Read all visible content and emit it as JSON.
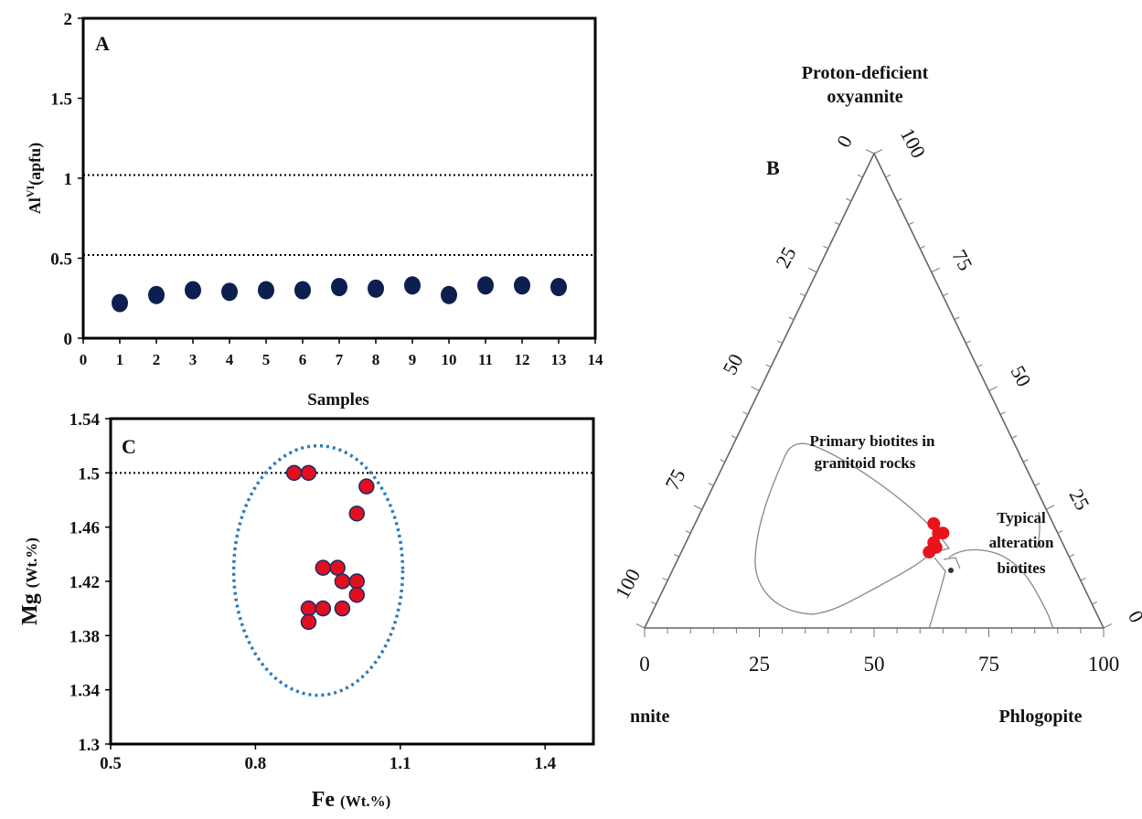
{
  "colors": {
    "panel_a_marker": "#0d1f4f",
    "panel_c_marker_fill": "#e01020",
    "panel_c_marker_stroke": "#1d2a66",
    "ellipse": "#2b7bbd",
    "ternary_points": "#e8141c",
    "axis": "#000000"
  },
  "chart_data": [
    {
      "id": "A",
      "type": "scatter",
      "panel_label": "A",
      "xlabel": "Samples",
      "ylabel_main": "Al",
      "ylabel_sup": "VI",
      "ylabel_rest": "(apfu)",
      "xlim": [
        0,
        14
      ],
      "ylim": [
        0,
        2
      ],
      "x_ticks": [
        "0",
        "1",
        "2",
        "3",
        "4",
        "5",
        "6",
        "7",
        "8",
        "9",
        "10",
        "11",
        "12",
        "13",
        "14"
      ],
      "y_ticks": [
        "0",
        "0.5",
        "1",
        "1.5",
        "2"
      ],
      "reference_lines_y": [
        0.52,
        1.02
      ],
      "points": [
        {
          "x": 1,
          "y": 0.22
        },
        {
          "x": 2,
          "y": 0.27
        },
        {
          "x": 3,
          "y": 0.3
        },
        {
          "x": 4,
          "y": 0.29
        },
        {
          "x": 5,
          "y": 0.3
        },
        {
          "x": 6,
          "y": 0.3
        },
        {
          "x": 7,
          "y": 0.32
        },
        {
          "x": 8,
          "y": 0.31
        },
        {
          "x": 9,
          "y": 0.33
        },
        {
          "x": 10,
          "y": 0.27
        },
        {
          "x": 11,
          "y": 0.33
        },
        {
          "x": 12,
          "y": 0.33
        },
        {
          "x": 13,
          "y": 0.32
        }
      ],
      "grid": false
    },
    {
      "id": "C",
      "type": "scatter",
      "panel_label": "C",
      "xlabel_main": "Fe",
      "xlabel_unit": "(Wt.%)",
      "ylabel_main": "Mg",
      "ylabel_unit": "(Wt.%)",
      "xlim": [
        0.5,
        1.5
      ],
      "ylim": [
        1.3,
        1.54
      ],
      "x_ticks": [
        "0.5",
        "0.8",
        "1.1",
        "1.4"
      ],
      "y_ticks": [
        "1.3",
        "1.34",
        "1.38",
        "1.42",
        "1.46",
        "1.5",
        "1.54"
      ],
      "reference_lines_y": [
        1.5
      ],
      "ellipse": {
        "cx": 0.93,
        "cy": 1.428,
        "rx": 0.175,
        "ry": 0.092
      },
      "points": [
        {
          "x": 0.88,
          "y": 1.5
        },
        {
          "x": 0.91,
          "y": 1.5
        },
        {
          "x": 1.03,
          "y": 1.49
        },
        {
          "x": 1.01,
          "y": 1.47
        },
        {
          "x": 0.94,
          "y": 1.43
        },
        {
          "x": 0.97,
          "y": 1.43
        },
        {
          "x": 0.98,
          "y": 1.42
        },
        {
          "x": 1.01,
          "y": 1.42
        },
        {
          "x": 1.01,
          "y": 1.41
        },
        {
          "x": 0.91,
          "y": 1.4
        },
        {
          "x": 0.94,
          "y": 1.4
        },
        {
          "x": 0.98,
          "y": 1.4
        },
        {
          "x": 0.91,
          "y": 1.39
        }
      ],
      "grid": false
    },
    {
      "id": "B",
      "type": "ternary",
      "panel_label": "B",
      "apex_top_line1": "Proton-deficient",
      "apex_top_line2": "oxyannite",
      "apex_left": "nnite",
      "apex_right": "Phlogopite",
      "bottom_ticks": [
        "0",
        "25",
        "50",
        "75",
        "100"
      ],
      "left_ticks": [
        "0",
        "25",
        "50",
        "75",
        "100"
      ],
      "right_ticks": [
        "0",
        "25",
        "50",
        "75",
        "100"
      ],
      "field_primary_line1": "Primary biotites in",
      "field_primary_line2": "granitoid rocks",
      "field_alteration_line1": "Typical",
      "field_alteration_line2": "alteration",
      "field_alteration_line3": "biotites",
      "points": [
        {
          "ox": 16,
          "phl": 54
        },
        {
          "ox": 17,
          "phl": 55
        },
        {
          "ox": 18,
          "phl": 54
        },
        {
          "ox": 20,
          "phl": 54
        },
        {
          "ox": 22,
          "phl": 52
        },
        {
          "ox": 20,
          "phl": 55
        }
      ]
    }
  ]
}
